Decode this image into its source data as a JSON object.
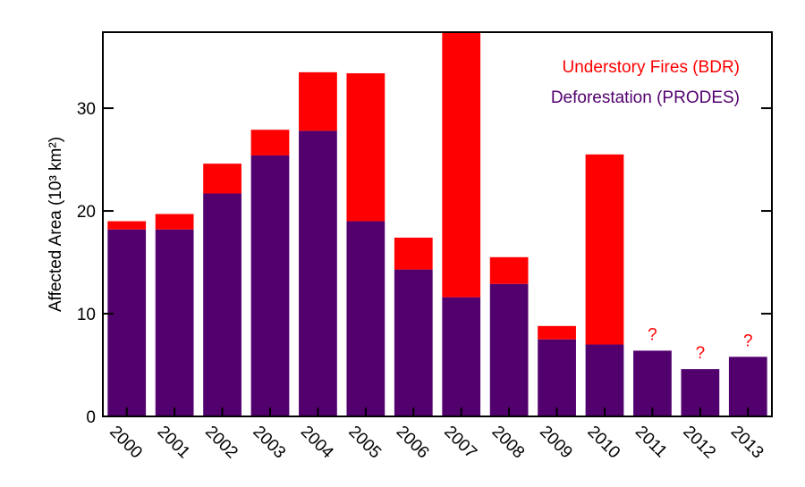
{
  "chart_data": {
    "type": "bar",
    "stacked": true,
    "y_label": "Affected Area (10³ km²)",
    "categories": [
      "2000",
      "2001",
      "2002",
      "2003",
      "2004",
      "2005",
      "2006",
      "2007",
      "2008",
      "2009",
      "2010",
      "2011",
      "2012",
      "2013"
    ],
    "series": [
      {
        "name": "Deforestation (PRODES)",
        "color": "#52006e",
        "values": [
          18.2,
          18.2,
          21.7,
          25.4,
          27.8,
          19.0,
          14.3,
          11.6,
          12.9,
          7.5,
          7.0,
          6.4,
          4.6,
          5.8
        ]
      },
      {
        "name": "Understory Fires (BDR)",
        "color": "#ff0000",
        "values": [
          0.8,
          1.5,
          2.9,
          2.5,
          5.7,
          14.4,
          3.1,
          26.0,
          2.6,
          1.3,
          18.5,
          null,
          null,
          null
        ],
        "value_labels": [
          null,
          null,
          null,
          null,
          null,
          null,
          null,
          null,
          null,
          null,
          null,
          "?",
          "?",
          "?"
        ]
      }
    ],
    "ylim": [
      0,
      37.4
    ],
    "yticks": [
      0,
      10,
      20,
      30
    ],
    "legend": "upper-right"
  }
}
